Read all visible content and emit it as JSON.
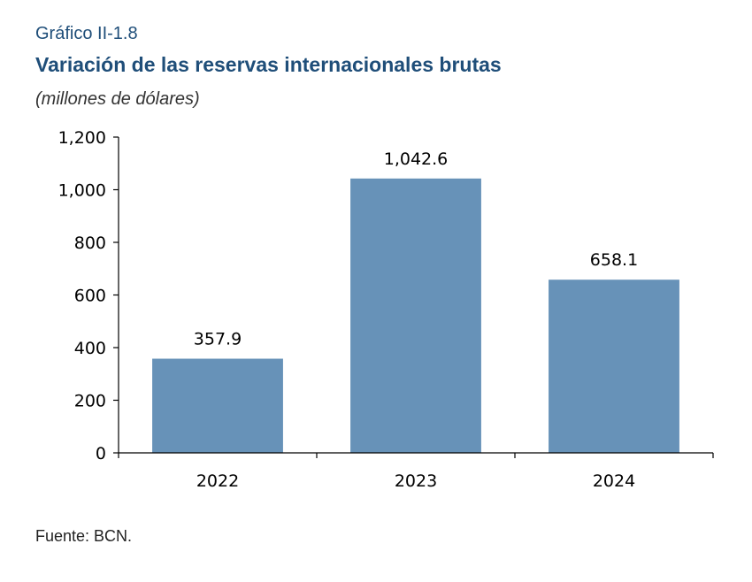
{
  "figure_label": "Gráfico II-1.8",
  "source": "Fuente: BCN.",
  "colors": {
    "bar": "#6792b8",
    "axis": "#000000",
    "title": "#1f4e79"
  },
  "chart_data": {
    "type": "bar",
    "title": "Variación de las reservas internacionales brutas",
    "subtitle": "(millones de dólares)",
    "categories": [
      "2022",
      "2023",
      "2024"
    ],
    "values": [
      357.9,
      1042.6,
      658.1
    ],
    "data_labels": [
      "357.9",
      "1,042.6",
      "658.1"
    ],
    "ylim": [
      0,
      1200
    ],
    "yticks": [
      0,
      200,
      400,
      600,
      800,
      1000,
      1200
    ],
    "ytick_labels": [
      "0",
      "200",
      "400",
      "600",
      "800",
      "1,000",
      "1,200"
    ],
    "xlabel": "",
    "ylabel": "",
    "grid": false,
    "legend": "none"
  }
}
